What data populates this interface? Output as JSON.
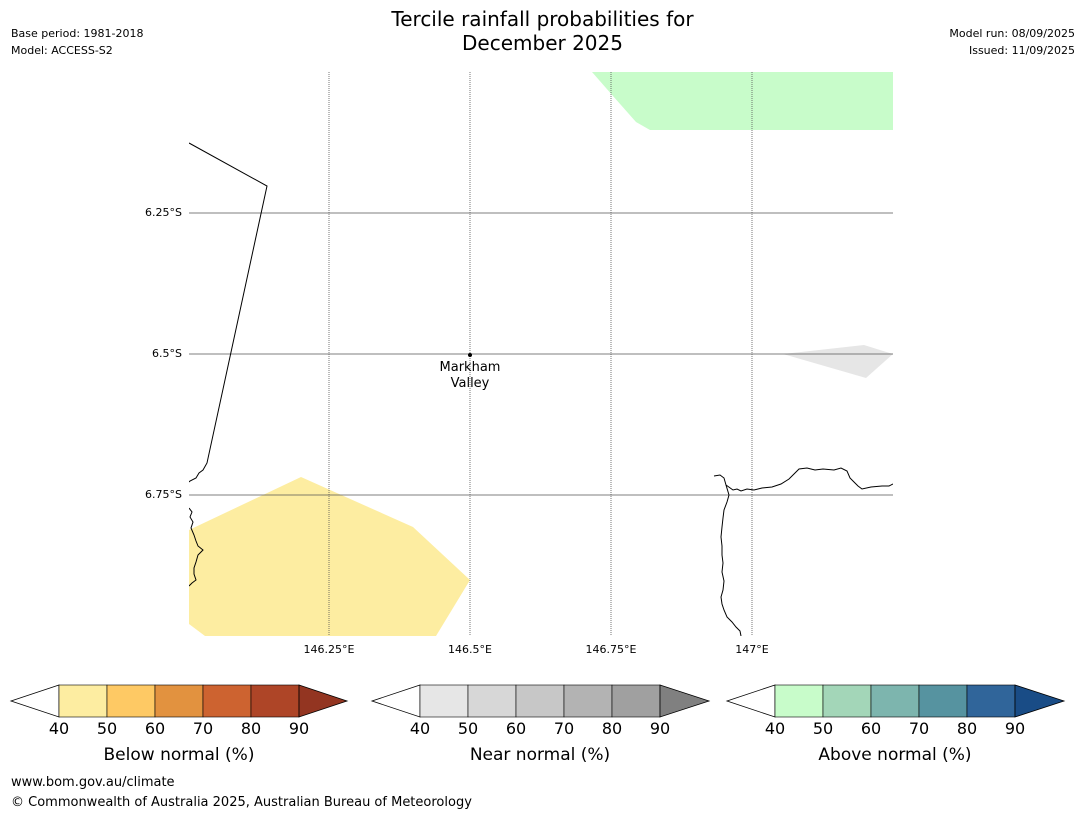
{
  "header": {
    "title_line1": "Tercile rainfall probabilities for",
    "title_line2": "December 2025",
    "base_period": "Base period: 1981-2018",
    "model": "Model: ACCESS-S2",
    "model_run": "Model run: 08/09/2025",
    "issued": "Issued: 11/09/2025"
  },
  "map": {
    "lat_labels": [
      "6.25°S",
      "6.5°S",
      "6.75°S"
    ],
    "lon_labels": [
      "146.25°E",
      "146.5°E",
      "146.75°E",
      "147°E"
    ],
    "place": {
      "name_line1": "Markham",
      "name_line2": "Valley"
    },
    "colors": {
      "below_normal_40": "#fdeda1",
      "near_normal_40": "#e6e6e6",
      "above_normal_40": "#c8fcca",
      "coast": "#000000",
      "grid": "#555555"
    }
  },
  "colorbars": [
    {
      "label": "Below normal (%)",
      "ticks": [
        "40",
        "50",
        "60",
        "70",
        "80",
        "90"
      ],
      "colors": [
        "#fdeda1",
        "#fec964",
        "#e2923f",
        "#cd6330",
        "#ae4527",
        "#933521"
      ]
    },
    {
      "label": "Near normal (%)",
      "ticks": [
        "40",
        "50",
        "60",
        "70",
        "80",
        "90"
      ],
      "colors": [
        "#e6e6e6",
        "#d7d7d7",
        "#c7c7c7",
        "#b3b3b3",
        "#a0a0a0",
        "#808080"
      ]
    },
    {
      "label": "Above normal (%)",
      "ticks": [
        "40",
        "50",
        "60",
        "70",
        "80",
        "90"
      ],
      "colors": [
        "#c8fcca",
        "#a3d6b8",
        "#7db5ae",
        "#5693a0",
        "#30659a",
        "#194c86"
      ]
    }
  ],
  "footer": {
    "url": "www.bom.gov.au/climate",
    "copyright": "© Commonwealth of Australia 2025, Australian Bureau of Meteorology"
  }
}
